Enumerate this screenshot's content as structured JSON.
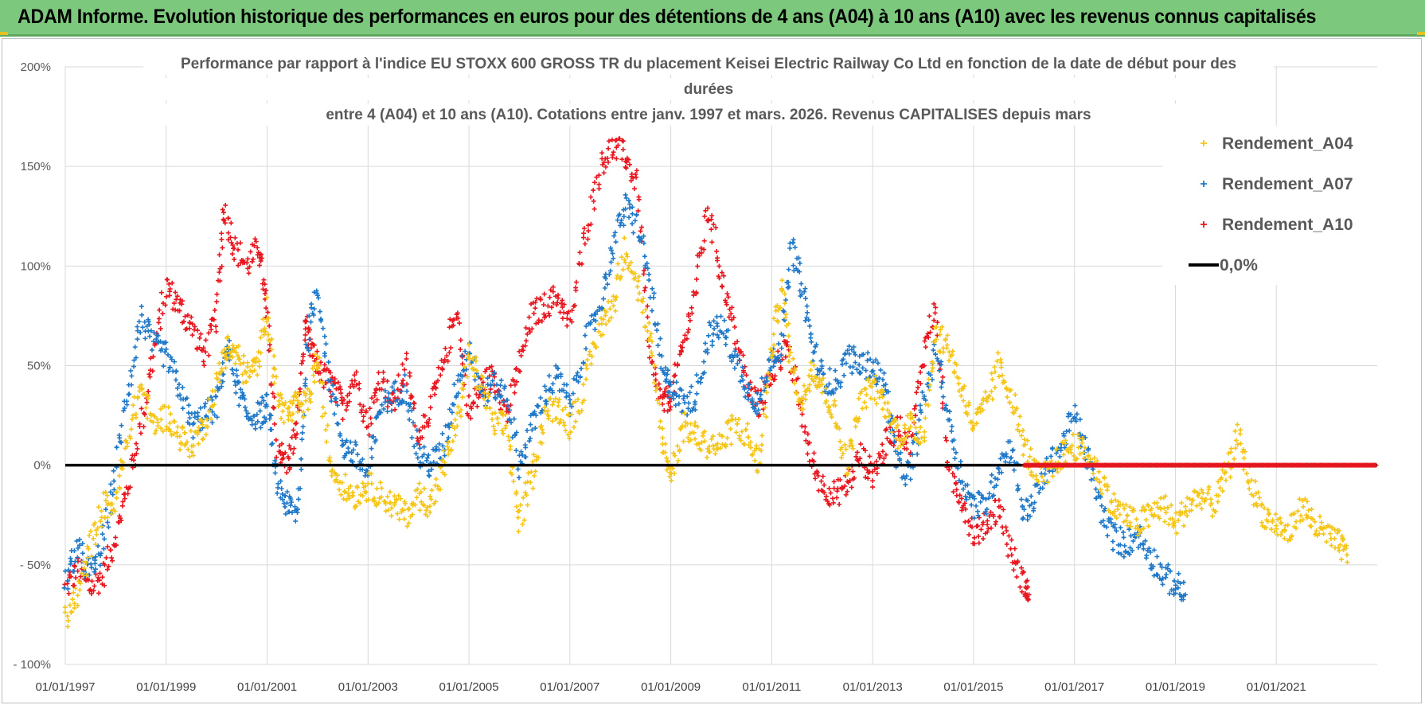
{
  "banner": {
    "title": "ADAM Informe. Evolution historique des performances en euros pour des détentions de 4 ans (A04) à 10 ans (A10) avec les revenus connus capitalisés"
  },
  "colors": {
    "banner_bg": "#7cc97e",
    "a04": "#f5c518",
    "a07": "#1f78c8",
    "a10": "#e8161e",
    "zero_line": "#000000",
    "grid": "#d9d9d9"
  },
  "chart_data": {
    "type": "scatter",
    "title_lines": [
      "Performance par rapport à l'indice EU STOXX 600 GROSS TR  du placement Keisei Electric Railway Co Ltd en fonction de la date de début pour des",
      "durées",
      "entre 4 (A04) et 10 ans (A10).  Cotations entre janv. 1997 et mars. 2026. Revenus CAPITALISES depuis mars"
    ],
    "xlabel": "",
    "ylabel": "",
    "xlim": [
      1997.0,
      2023.0
    ],
    "ylim": [
      -100,
      200
    ],
    "yticks": [
      200,
      150,
      100,
      50,
      0,
      -50,
      -100
    ],
    "ytick_labels": [
      "200%",
      "150%",
      "100%",
      "50%",
      "0%",
      "- 50%",
      "- 100%"
    ],
    "xticks": [
      1997,
      1999,
      2001,
      2003,
      2005,
      2007,
      2009,
      2011,
      2013,
      2015,
      2017,
      2019,
      2021
    ],
    "xtick_labels": [
      "01/01/1997",
      "01/01/1999",
      "01/01/2001",
      "01/01/2003",
      "01/01/2005",
      "01/01/2007",
      "01/01/2009",
      "01/01/2011",
      "01/01/2013",
      "01/01/2015",
      "01/01/2017",
      "01/01/2019",
      "01/01/2021"
    ],
    "grid": true,
    "legend_position": "right",
    "legend": [
      {
        "name": "Rendement_A04",
        "marker": "plus",
        "color": "#f5c518"
      },
      {
        "name": "Rendement_A07",
        "marker": "plus",
        "color": "#1f78c8"
      },
      {
        "name": "Rendement_A10",
        "marker": "plus",
        "color": "#e8161e"
      },
      {
        "name": "0,0%",
        "marker": "line",
        "color": "#000000"
      }
    ],
    "series": [
      {
        "name": "Rendement_A10",
        "color": "#e8161e",
        "x": [
          1997.0,
          1997.25,
          1997.5,
          1997.75,
          1998.0,
          1998.25,
          1998.5,
          1998.75,
          1999.0,
          1999.25,
          1999.5,
          1999.75,
          2000.0,
          2000.15,
          2000.35,
          2000.6,
          2000.85,
          2001.0,
          2001.2,
          2001.4,
          2001.6,
          2001.75,
          2001.9,
          2002.1,
          2002.3,
          2002.5,
          2002.75,
          2003.0,
          2003.25,
          2003.5,
          2003.75,
          2004.0,
          2004.25,
          2004.5,
          2004.75,
          2005.0,
          2005.25,
          2005.5,
          2005.75,
          2006.0,
          2006.25,
          2006.5,
          2006.75,
          2007.0,
          2007.3,
          2007.6,
          2007.85,
          2008.1,
          2008.35,
          2008.6,
          2008.85,
          2009.0,
          2009.25,
          2009.5,
          2009.75,
          2010.0,
          2010.25,
          2010.5,
          2010.75,
          2011.0,
          2011.25,
          2011.5,
          2011.75,
          2012.0,
          2012.25,
          2012.5,
          2012.75,
          2013.0,
          2013.25,
          2013.5,
          2013.75,
          2014.0,
          2014.25,
          2014.5,
          2014.75,
          2015.0,
          2015.25,
          2015.5,
          2015.75,
          2016.0,
          2016.1
        ],
        "y": [
          -62,
          -52,
          -62,
          -55,
          -35,
          -10,
          20,
          55,
          90,
          80,
          70,
          55,
          75,
          130,
          110,
          100,
          110,
          75,
          10,
          0,
          20,
          70,
          55,
          45,
          40,
          30,
          45,
          20,
          45,
          30,
          50,
          15,
          30,
          50,
          80,
          25,
          40,
          45,
          25,
          50,
          75,
          80,
          85,
          70,
          115,
          150,
          160,
          155,
          140,
          50,
          30,
          35,
          60,
          90,
          130,
          95,
          70,
          40,
          30,
          45,
          60,
          40,
          5,
          -10,
          -15,
          -10,
          5,
          -5,
          10,
          20,
          10,
          55,
          80,
          -5,
          -15,
          -35,
          -30,
          -20,
          -45,
          -60,
          -65
        ]
      },
      {
        "name": "Rendement_A07",
        "color": "#1f78c8",
        "x": [
          1997.0,
          1997.25,
          1997.5,
          1997.75,
          1998.0,
          1998.25,
          1998.5,
          1998.75,
          1999.0,
          1999.25,
          1999.5,
          1999.75,
          2000.0,
          2000.2,
          2000.4,
          2000.6,
          2000.85,
          2001.0,
          2001.2,
          2001.4,
          2001.6,
          2001.8,
          2002.0,
          2002.25,
          2002.5,
          2002.75,
          2003.0,
          2003.25,
          2003.5,
          2003.75,
          2004.0,
          2004.25,
          2004.5,
          2004.75,
          2005.0,
          2005.25,
          2005.5,
          2005.75,
          2006.0,
          2006.25,
          2006.5,
          2006.75,
          2007.0,
          2007.3,
          2007.6,
          2007.85,
          2008.1,
          2008.35,
          2008.6,
          2008.85,
          2009.0,
          2009.25,
          2009.5,
          2009.75,
          2010.0,
          2010.25,
          2010.5,
          2010.75,
          2011.0,
          2011.2,
          2011.4,
          2011.6,
          2011.8,
          2012.0,
          2012.25,
          2012.5,
          2012.75,
          2013.0,
          2013.25,
          2013.5,
          2013.75,
          2014.0,
          2014.25,
          2014.5,
          2014.75,
          2015.0,
          2015.25,
          2015.5,
          2015.75,
          2016.0,
          2016.25,
          2016.5,
          2016.75,
          2017.0,
          2017.25,
          2017.5,
          2017.75,
          2018.0,
          2018.25,
          2018.5,
          2018.75,
          2019.0,
          2019.2
        ],
        "y": [
          -60,
          -42,
          -55,
          -40,
          0,
          40,
          75,
          60,
          55,
          40,
          20,
          25,
          30,
          60,
          40,
          25,
          25,
          30,
          -10,
          -20,
          -25,
          60,
          90,
          40,
          10,
          5,
          -5,
          30,
          35,
          40,
          5,
          0,
          10,
          40,
          60,
          35,
          40,
          35,
          0,
          20,
          35,
          45,
          30,
          60,
          80,
          110,
          130,
          120,
          90,
          45,
          40,
          30,
          35,
          65,
          70,
          55,
          40,
          30,
          55,
          60,
          110,
          90,
          60,
          45,
          40,
          55,
          50,
          50,
          40,
          0,
          -5,
          30,
          60,
          25,
          -5,
          -20,
          -20,
          0,
          10,
          -25,
          -15,
          0,
          10,
          25,
          5,
          -20,
          -35,
          -40,
          -35,
          -45,
          -55,
          -60,
          -65
        ]
      },
      {
        "name": "Rendement_A04",
        "color": "#f5c518",
        "x": [
          1997.0,
          1997.25,
          1997.5,
          1997.75,
          1998.0,
          1998.25,
          1998.5,
          1998.75,
          1999.0,
          1999.25,
          1999.5,
          1999.75,
          2000.0,
          2000.2,
          2000.4,
          2000.6,
          2000.8,
          2001.0,
          2001.2,
          2001.4,
          2001.6,
          2001.8,
          2002.0,
          2002.25,
          2002.5,
          2002.75,
          2003.0,
          2003.25,
          2003.5,
          2003.75,
          2004.0,
          2004.25,
          2004.5,
          2004.75,
          2005.0,
          2005.25,
          2005.5,
          2005.75,
          2006.0,
          2006.25,
          2006.5,
          2006.75,
          2007.0,
          2007.3,
          2007.6,
          2007.85,
          2008.1,
          2008.35,
          2008.6,
          2008.85,
          2009.0,
          2009.25,
          2009.5,
          2009.75,
          2010.0,
          2010.25,
          2010.5,
          2010.75,
          2011.0,
          2011.2,
          2011.4,
          2011.6,
          2011.8,
          2012.0,
          2012.25,
          2012.5,
          2012.75,
          2013.0,
          2013.25,
          2013.5,
          2013.75,
          2014.0,
          2014.25,
          2014.5,
          2014.75,
          2015.0,
          2015.25,
          2015.5,
          2015.75,
          2016.0,
          2016.25,
          2016.5,
          2016.75,
          2017.0,
          2017.25,
          2017.5,
          2017.75,
          2018.0,
          2018.25,
          2018.5,
          2018.75,
          2019.0,
          2019.25,
          2019.5,
          2019.75,
          2020.0,
          2020.25,
          2020.5,
          2020.75,
          2021.0,
          2021.25,
          2021.5,
          2021.75,
          2022.0,
          2022.25,
          2022.4
        ],
        "y": [
          -78,
          -65,
          -40,
          -20,
          -20,
          15,
          40,
          20,
          25,
          15,
          10,
          20,
          40,
          60,
          55,
          45,
          50,
          80,
          35,
          25,
          30,
          30,
          55,
          0,
          -10,
          -15,
          -10,
          -15,
          -20,
          -25,
          -15,
          -20,
          0,
          20,
          55,
          40,
          20,
          20,
          -30,
          -5,
          25,
          30,
          20,
          40,
          70,
          80,
          110,
          90,
          60,
          10,
          -5,
          20,
          15,
          10,
          10,
          20,
          15,
          0,
          60,
          90,
          50,
          30,
          50,
          40,
          25,
          0,
          30,
          40,
          30,
          15,
          20,
          15,
          65,
          60,
          40,
          20,
          30,
          50,
          35,
          10,
          -5,
          -5,
          5,
          10,
          5,
          -5,
          -20,
          -25,
          -30,
          -25,
          -20,
          -30,
          -20,
          -15,
          -20,
          -5,
          15,
          -10,
          -25,
          -30,
          -35,
          -20,
          -30,
          -35,
          -40,
          -45
        ]
      }
    ],
    "zero_line_value": 0
  }
}
